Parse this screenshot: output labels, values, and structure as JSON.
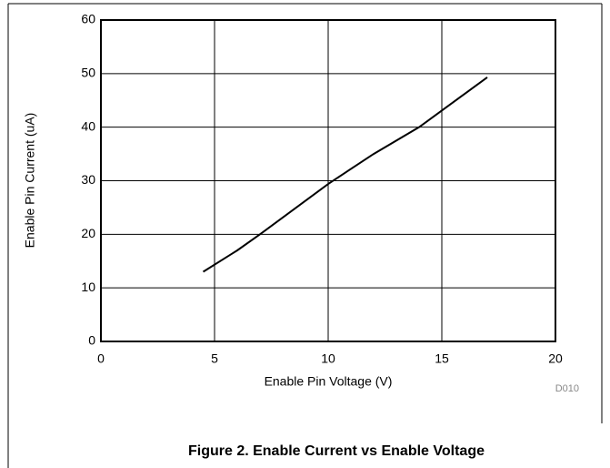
{
  "chart_data": {
    "type": "line",
    "caption": "Figure 2. Enable Current vs Enable Voltage",
    "annotation": "D010",
    "x_label": "Enable Pin Voltage (V)",
    "y_label": "Enable Pin Current (uA)",
    "x": [
      4.5,
      6,
      7,
      10,
      12,
      14,
      17
    ],
    "series": [
      {
        "name": "Enable Current",
        "color": "#000000",
        "values": [
          13,
          17,
          20,
          29.4,
          35,
          40,
          49.3
        ]
      }
    ],
    "xlim": [
      0,
      20
    ],
    "xticks": [
      0,
      5,
      10,
      15,
      20
    ],
    "ylim": [
      0,
      60
    ],
    "yticks": [
      0,
      10,
      20,
      30,
      40,
      50,
      60
    ],
    "grid": true
  }
}
